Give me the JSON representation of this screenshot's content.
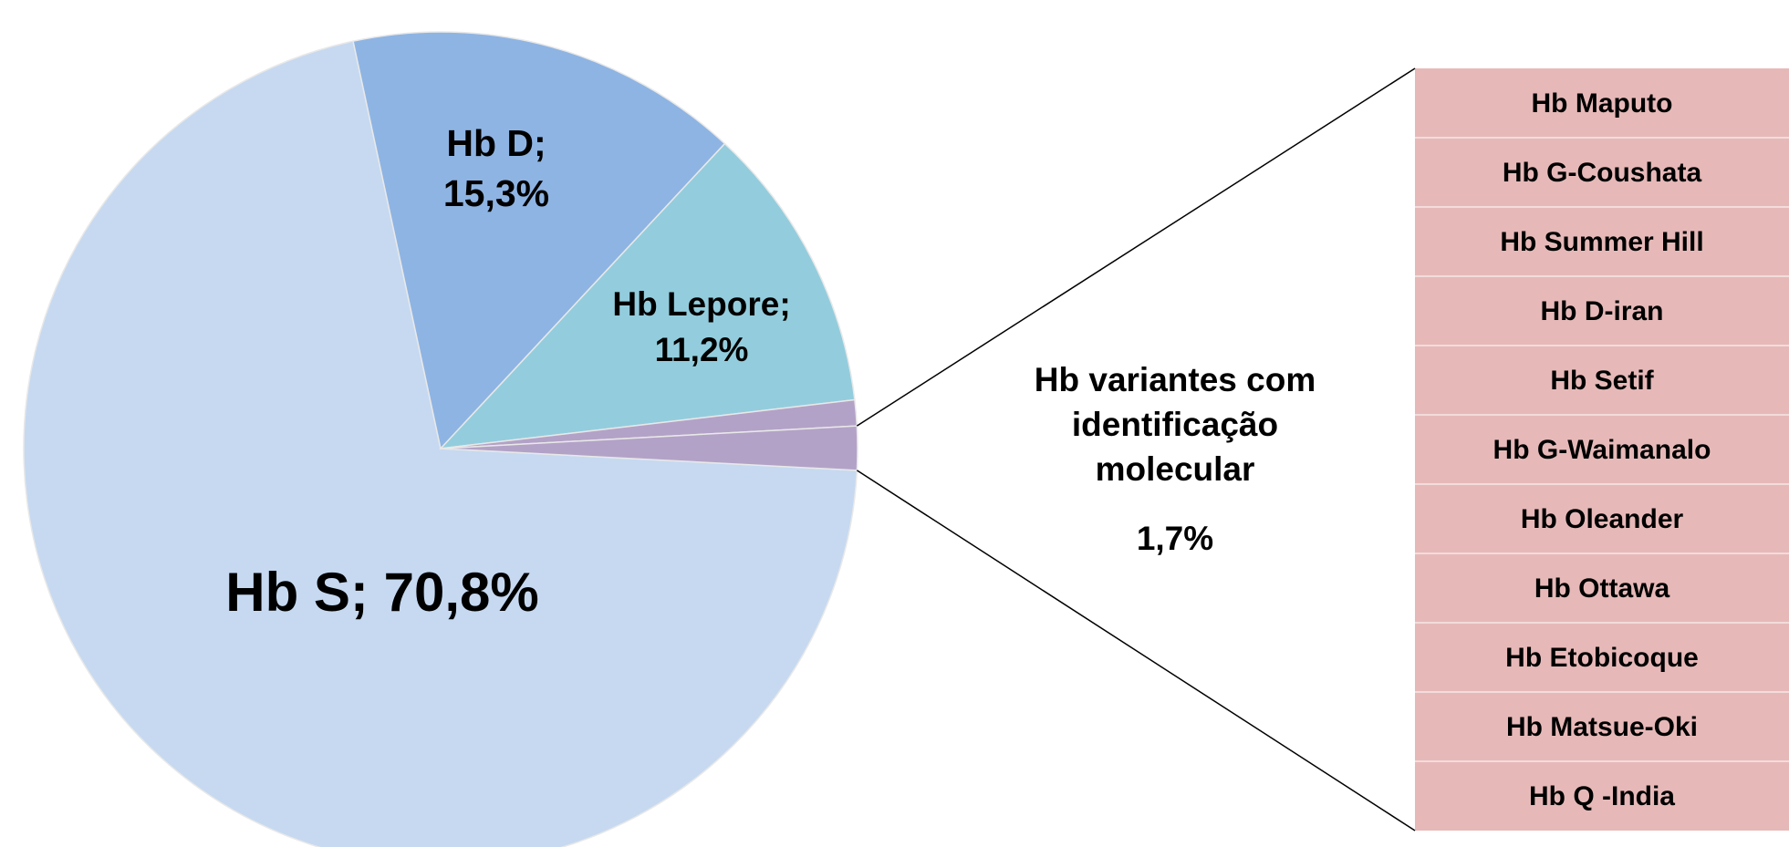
{
  "chart_data": {
    "type": "pie",
    "categories": [
      "Hb S;",
      "Hb D;",
      "Hb Lepore;",
      null,
      "Hb variantes com identificação molecular"
    ],
    "values": [
      70.8,
      15.3,
      11.2,
      1.0,
      1.7
    ],
    "value_labels": [
      "70,8%",
      "15,3%",
      "11,2%",
      null,
      "1,7%"
    ],
    "colors": [
      "#c6d9f1",
      "#8eb4e3",
      "#93cddd",
      "#b3a2c7",
      "#b3a2c7"
    ],
    "breakdown": {
      "color": "#e6b9b8",
      "items": [
        "Hb Maputo",
        "Hb G-Coushata",
        "Hb Summer Hill",
        "Hb D-iran",
        "Hb Setif",
        "Hb G-Waimanalo",
        "Hb Oleander",
        "Hb Ottawa",
        "Hb Etobicoque",
        "Hb Matsue-Oki",
        "Hb Q -India"
      ]
    }
  }
}
